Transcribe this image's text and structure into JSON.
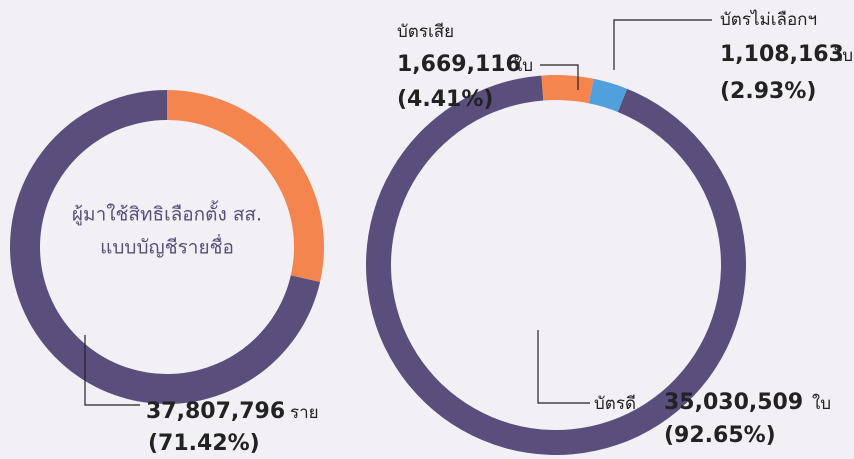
{
  "chart_data": [
    {
      "type": "pie",
      "title_lines": [
        "ผู้มาใช้สิทธิเลือกตั้ง สส.",
        "แบบบัญชีรายชื่อ"
      ],
      "slices": [
        {
          "value": 28.58,
          "color": "#f4854e"
        },
        {
          "value": 71.42,
          "value_label": "(71.42%)",
          "count": 37807796,
          "unit": "ราย",
          "color": "#5a4e7c"
        }
      ]
    },
    {
      "type": "pie",
      "slices": [
        {
          "name": "บัตรไม่เลือกฯ",
          "value": 2.93,
          "value_label": "(2.93%)",
          "count": 1108163,
          "unit": "ใบ",
          "color": "#4fa0dc"
        },
        {
          "name": "บัตรเสีย",
          "value": 4.41,
          "value_label": "(4.41%)",
          "count": 1669116,
          "unit": "ใบ",
          "color": "#f4854e"
        },
        {
          "name": "บัตรดี",
          "value": 92.65,
          "value_label": "(92.65%)",
          "count": 35030509,
          "unit": "ใบ",
          "color": "#5a4e7c"
        }
      ]
    }
  ]
}
